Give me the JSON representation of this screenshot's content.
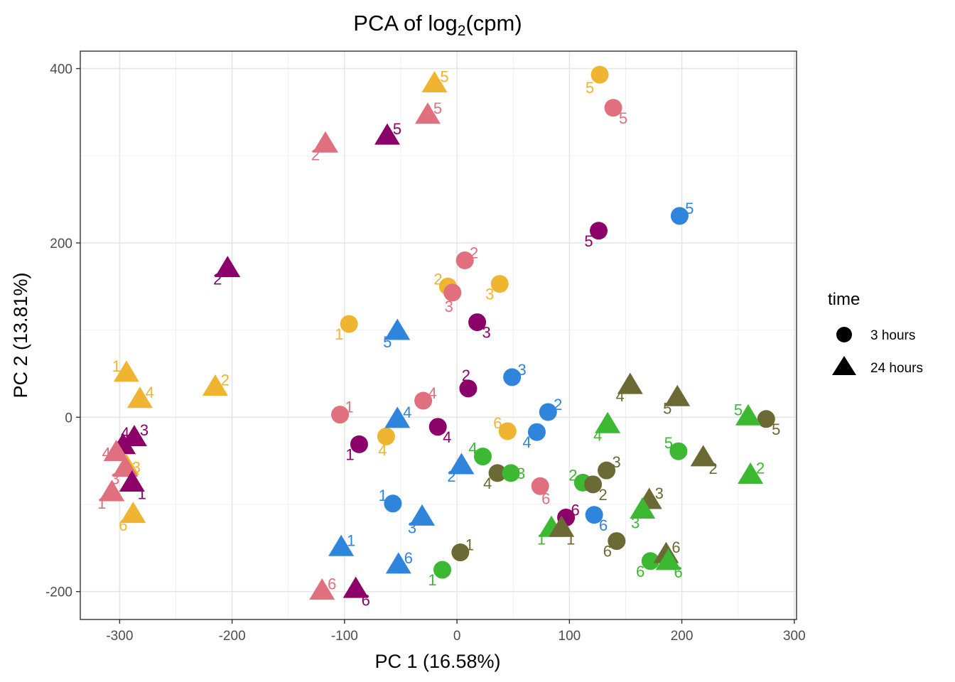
{
  "chart_data": {
    "type": "scatter",
    "title": "PCA of log",
    "title_subscript": "2",
    "title_suffix": "(cpm)",
    "xlabel": "PC 1 (16.58%)",
    "ylabel": "PC 2 (13.81%)",
    "xlim": [
      -335,
      302
    ],
    "ylim": [
      -232,
      420
    ],
    "x_ticks": [
      -300,
      -200,
      -100,
      0,
      100,
      200,
      300
    ],
    "y_ticks": [
      -200,
      0,
      200,
      400
    ],
    "x_tick_labels": [
      "-300",
      "-200",
      "-100",
      "0",
      "100",
      "200",
      "300"
    ],
    "y_tick_labels": [
      "-200",
      "0",
      "200",
      "400"
    ],
    "grid": true,
    "legend": {
      "title": "time",
      "position": "right",
      "entries": [
        {
          "label": "3 hours",
          "shape": "circle"
        },
        {
          "label": "24 hours",
          "shape": "triangle"
        }
      ]
    },
    "colors": {
      "purple": "#8B0069",
      "pink": "#E0707E",
      "gold": "#F0B530",
      "blue": "#2F85DB",
      "green": "#3DB833",
      "olive": "#6B6A35"
    },
    "points": [
      {
        "x": 127,
        "y": 393,
        "shape": "circle",
        "color": "gold",
        "label": "5",
        "lx": -14,
        "ly": -18
      },
      {
        "x": 139,
        "y": 355,
        "shape": "circle",
        "color": "pink",
        "label": "5",
        "lx": 14,
        "ly": -14
      },
      {
        "x": 198,
        "y": 231,
        "shape": "circle",
        "color": "blue",
        "label": "5",
        "lx": 14,
        "ly": 11
      },
      {
        "x": 126,
        "y": 214,
        "shape": "circle",
        "color": "purple",
        "label": "5",
        "lx": -14,
        "ly": -14
      },
      {
        "x": 7,
        "y": 180,
        "shape": "circle",
        "color": "pink",
        "label": "2",
        "lx": 13,
        "ly": 11
      },
      {
        "x": -8,
        "y": 150,
        "shape": "circle",
        "color": "gold",
        "label": "2",
        "lx": -14,
        "ly": 11
      },
      {
        "x": -4,
        "y": 143,
        "shape": "circle",
        "color": "pink",
        "label": "3",
        "lx": -5,
        "ly": -19
      },
      {
        "x": 38,
        "y": 153,
        "shape": "circle",
        "color": "gold",
        "label": "3",
        "lx": -14,
        "ly": -14
      },
      {
        "x": 18,
        "y": 109,
        "shape": "circle",
        "color": "purple",
        "label": "3",
        "lx": 13,
        "ly": -14
      },
      {
        "x": -96,
        "y": 107,
        "shape": "circle",
        "color": "gold",
        "label": "1",
        "lx": -14,
        "ly": -14
      },
      {
        "x": 49,
        "y": 46,
        "shape": "circle",
        "color": "blue",
        "label": "3",
        "lx": 14,
        "ly": 11
      },
      {
        "x": 10,
        "y": 33,
        "shape": "circle",
        "color": "purple",
        "label": "2",
        "lx": -3,
        "ly": 19
      },
      {
        "x": -30,
        "y": 19,
        "shape": "circle",
        "color": "pink",
        "label": "4",
        "lx": 13,
        "ly": 11
      },
      {
        "x": 81,
        "y": 6,
        "shape": "circle",
        "color": "blue",
        "label": "2",
        "lx": 14,
        "ly": 11
      },
      {
        "x": -104,
        "y": 3,
        "shape": "circle",
        "color": "pink",
        "label": "1",
        "lx": 13,
        "ly": 11
      },
      {
        "x": 45,
        "y": -16,
        "shape": "circle",
        "color": "gold",
        "label": "6",
        "lx": -14,
        "ly": 12
      },
      {
        "x": -17,
        "y": -11,
        "shape": "circle",
        "color": "purple",
        "label": "4",
        "lx": 13,
        "ly": -14
      },
      {
        "x": 71,
        "y": -17,
        "shape": "circle",
        "color": "blue",
        "label": "4",
        "lx": -14,
        "ly": -14
      },
      {
        "x": -63,
        "y": -22,
        "shape": "circle",
        "color": "gold",
        "label": "4",
        "lx": -5,
        "ly": -19
      },
      {
        "x": -87,
        "y": -31,
        "shape": "circle",
        "color": "purple",
        "label": "1",
        "lx": -13,
        "ly": -14
      },
      {
        "x": 23,
        "y": -45,
        "shape": "circle",
        "color": "green",
        "label": "4",
        "lx": -14,
        "ly": 12
      },
      {
        "x": 36,
        "y": -64,
        "shape": "circle",
        "color": "olive",
        "label": "4",
        "lx": -14,
        "ly": -14
      },
      {
        "x": 48,
        "y": -64,
        "shape": "circle",
        "color": "green",
        "label": "3",
        "lx": 14,
        "ly": 0
      },
      {
        "x": 133,
        "y": -61,
        "shape": "circle",
        "color": "olive",
        "label": "3",
        "lx": 14,
        "ly": 12
      },
      {
        "x": 112,
        "y": -75,
        "shape": "circle",
        "color": "green",
        "label": "2",
        "lx": -14,
        "ly": 11
      },
      {
        "x": 121,
        "y": -77,
        "shape": "circle",
        "color": "olive",
        "label": "2",
        "lx": 14,
        "ly": -14
      },
      {
        "x": 197,
        "y": -39,
        "shape": "circle",
        "color": "green",
        "label": "5",
        "lx": -14,
        "ly": 12
      },
      {
        "x": 275,
        "y": -2,
        "shape": "circle",
        "color": "olive",
        "label": "5",
        "lx": 14,
        "ly": -14
      },
      {
        "x": 74,
        "y": -79,
        "shape": "circle",
        "color": "pink",
        "label": "6",
        "lx": 8,
        "ly": -17
      },
      {
        "x": 97,
        "y": -115,
        "shape": "circle",
        "color": "purple",
        "label": "6",
        "lx": 13,
        "ly": 11
      },
      {
        "x": 122,
        "y": -112,
        "shape": "circle",
        "color": "blue",
        "label": "6",
        "lx": 13,
        "ly": -14
      },
      {
        "x": -57,
        "y": -99,
        "shape": "circle",
        "color": "blue",
        "label": "1",
        "lx": -14,
        "ly": 12
      },
      {
        "x": 3,
        "y": -155,
        "shape": "circle",
        "color": "olive",
        "label": "1",
        "lx": 13,
        "ly": 11
      },
      {
        "x": -13,
        "y": -175,
        "shape": "circle",
        "color": "green",
        "label": "1",
        "lx": -14,
        "ly": -14
      },
      {
        "x": 142,
        "y": -142,
        "shape": "circle",
        "color": "olive",
        "label": "6",
        "lx": -13,
        "ly": -14
      },
      {
        "x": 172,
        "y": -165,
        "shape": "circle",
        "color": "green",
        "label": "6",
        "lx": -14,
        "ly": -14
      },
      {
        "x": -20,
        "y": 382,
        "shape": "triangle",
        "color": "gold",
        "label": "5",
        "lx": 14,
        "ly": 11
      },
      {
        "x": -26,
        "y": 346,
        "shape": "triangle",
        "color": "pink",
        "label": "5",
        "lx": 14,
        "ly": 11
      },
      {
        "x": -117,
        "y": 313,
        "shape": "triangle",
        "color": "pink",
        "label": "2",
        "lx": -14,
        "ly": -14
      },
      {
        "x": -62,
        "y": 322,
        "shape": "triangle",
        "color": "purple",
        "label": "5",
        "lx": 14,
        "ly": 11
      },
      {
        "x": -204,
        "y": 170,
        "shape": "triangle",
        "color": "purple",
        "label": "2",
        "lx": -14,
        "ly": -14
      },
      {
        "x": -53,
        "y": 98,
        "shape": "triangle",
        "color": "blue",
        "label": "5",
        "lx": -14,
        "ly": -14
      },
      {
        "x": -294,
        "y": 50,
        "shape": "triangle",
        "color": "gold",
        "label": "1",
        "lx": -14,
        "ly": 11
      },
      {
        "x": -282,
        "y": 20,
        "shape": "triangle",
        "color": "gold",
        "label": "4",
        "lx": 14,
        "ly": 11
      },
      {
        "x": -215,
        "y": 34,
        "shape": "triangle",
        "color": "gold",
        "label": "2",
        "lx": 14,
        "ly": 11
      },
      {
        "x": -287,
        "y": -24,
        "shape": "triangle",
        "color": "purple",
        "label": "3",
        "lx": 14,
        "ly": 12
      },
      {
        "x": -297,
        "y": -33,
        "shape": "triangle",
        "color": "purple",
        "label": "4",
        "lx": 3,
        "ly": 19
      },
      {
        "x": -303,
        "y": -41,
        "shape": "triangle",
        "color": "pink",
        "label": "4",
        "lx": -14,
        "ly": 0
      },
      {
        "x": -294,
        "y": -57,
        "shape": "triangle",
        "color": "gold",
        "label": "3",
        "lx": 14,
        "ly": 0
      },
      {
        "x": -295,
        "y": -59,
        "shape": "triangle",
        "color": "pink",
        "label": "3",
        "lx": -14,
        "ly": -14
      },
      {
        "x": -289,
        "y": -76,
        "shape": "triangle",
        "color": "purple",
        "label": "1",
        "lx": 14,
        "ly": -14
      },
      {
        "x": -307,
        "y": -87,
        "shape": "triangle",
        "color": "pink",
        "label": "1",
        "lx": -14,
        "ly": -14
      },
      {
        "x": -288,
        "y": -112,
        "shape": "triangle",
        "color": "gold",
        "label": "6",
        "lx": -14,
        "ly": -14
      },
      {
        "x": -53,
        "y": -3,
        "shape": "triangle",
        "color": "blue",
        "label": "4",
        "lx": 14,
        "ly": 11
      },
      {
        "x": 4,
        "y": -56,
        "shape": "triangle",
        "color": "blue",
        "label": "2",
        "lx": -14,
        "ly": -14
      },
      {
        "x": -31,
        "y": -115,
        "shape": "triangle",
        "color": "blue",
        "label": "3",
        "lx": -14,
        "ly": -14
      },
      {
        "x": -103,
        "y": -150,
        "shape": "triangle",
        "color": "blue",
        "label": "1",
        "lx": 14,
        "ly": 11
      },
      {
        "x": -52,
        "y": -170,
        "shape": "triangle",
        "color": "blue",
        "label": "6",
        "lx": 14,
        "ly": 11
      },
      {
        "x": -120,
        "y": -200,
        "shape": "triangle",
        "color": "pink",
        "label": "6",
        "lx": 14,
        "ly": 11
      },
      {
        "x": -90,
        "y": -198,
        "shape": "triangle",
        "color": "purple",
        "label": "6",
        "lx": 14,
        "ly": -14
      },
      {
        "x": 154,
        "y": 36,
        "shape": "triangle",
        "color": "olive",
        "label": "4",
        "lx": -14,
        "ly": -14
      },
      {
        "x": 196,
        "y": 22,
        "shape": "triangle",
        "color": "olive",
        "label": "5",
        "lx": -14,
        "ly": -14
      },
      {
        "x": 134,
        "y": -9,
        "shape": "triangle",
        "color": "green",
        "label": "4",
        "lx": -14,
        "ly": -14
      },
      {
        "x": 259,
        "y": 0,
        "shape": "triangle",
        "color": "green",
        "label": "5",
        "lx": -14,
        "ly": 11
      },
      {
        "x": 219,
        "y": -47,
        "shape": "triangle",
        "color": "olive",
        "label": "2",
        "lx": 14,
        "ly": -14
      },
      {
        "x": 261,
        "y": -67,
        "shape": "triangle",
        "color": "green",
        "label": "2",
        "lx": 14,
        "ly": 11
      },
      {
        "x": 171,
        "y": -96,
        "shape": "triangle",
        "color": "olive",
        "label": "3",
        "lx": 14,
        "ly": 11
      },
      {
        "x": 165,
        "y": -107,
        "shape": "triangle",
        "color": "green",
        "label": "3",
        "lx": -10,
        "ly": -17
      },
      {
        "x": 84,
        "y": -128,
        "shape": "triangle",
        "color": "green",
        "label": "1",
        "lx": -14,
        "ly": -14
      },
      {
        "x": 93,
        "y": -128,
        "shape": "triangle",
        "color": "olive",
        "label": "1",
        "lx": 13,
        "ly": -14
      },
      {
        "x": 186,
        "y": -158,
        "shape": "triangle",
        "color": "olive",
        "label": "6",
        "lx": 14,
        "ly": 11
      },
      {
        "x": 188,
        "y": -166,
        "shape": "triangle",
        "color": "green",
        "label": "6",
        "lx": 14,
        "ly": -14
      }
    ]
  }
}
